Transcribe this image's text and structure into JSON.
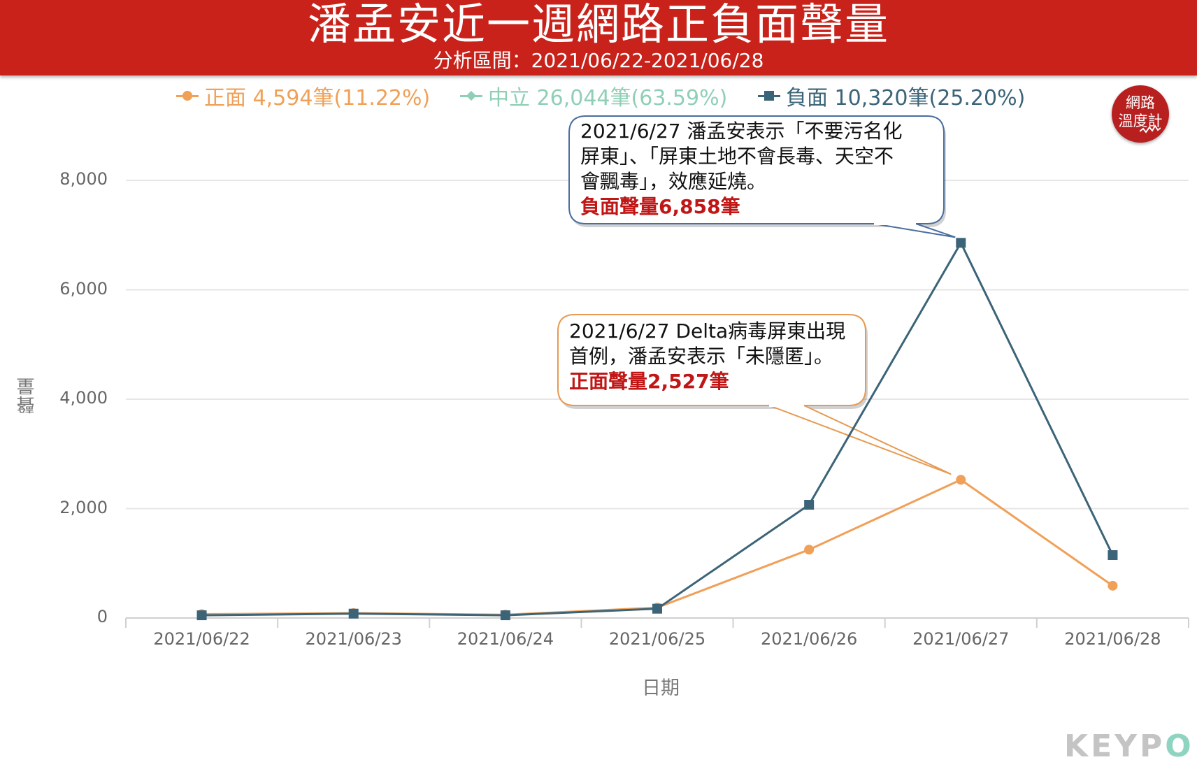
{
  "header": {
    "title": "潘孟安近一週網路正負面聲量",
    "subtitle": "分析區間：2021/06/22-2021/06/28"
  },
  "legend": [
    {
      "label": "正面 4,594筆(11.22%)",
      "color": "#f0a057",
      "marker": "circle"
    },
    {
      "label": "中立 26,044筆(63.59%)",
      "color": "#8fcfb6",
      "marker": "diamond"
    },
    {
      "label": "負面 10,320筆(25.20%)",
      "color": "#3c6478",
      "marker": "square"
    }
  ],
  "logo": {
    "line1": "網路",
    "line2": "溫度計"
  },
  "watermark": {
    "text_main": "KEYP",
    "text_o": "O"
  },
  "callouts": {
    "negative": {
      "line1": "2021/6/27 潘孟安表示「不要污名化",
      "line2": "屏東」、「屏東土地不會長毒、天空不",
      "line3": "會飄毒」，效應延燒。",
      "highlight": "負面聲量6,858筆",
      "border_color": "#4a6e9e"
    },
    "positive": {
      "line1": "2021/6/27 Delta病毒屏東出現",
      "line2": "首例，潘孟安表示「未隱匿」。",
      "highlight": "正面聲量2,527筆",
      "border_color": "#e69a52"
    }
  },
  "chart_data": {
    "type": "line",
    "title": "潘孟安近一週網路正負面聲量",
    "xlabel": "日期",
    "ylabel": "聲量",
    "categories": [
      "2021/06/22",
      "2021/06/23",
      "2021/06/24",
      "2021/06/25",
      "2021/06/26",
      "2021/06/27",
      "2021/06/28"
    ],
    "ylim": [
      0,
      8000
    ],
    "yticks": [
      {
        "value": 0,
        "label": "0"
      },
      {
        "value": 2000,
        "label": "2,000"
      },
      {
        "value": 4000,
        "label": "4,000"
      },
      {
        "value": 6000,
        "label": "6,000"
      },
      {
        "value": 8000,
        "label": "8,000"
      }
    ],
    "grid": true,
    "legend_position": "top",
    "series": [
      {
        "name": "正面",
        "color": "#f0a057",
        "marker": "circle",
        "values": [
          70,
          90,
          60,
          190,
          1250,
          2527,
          590
        ]
      },
      {
        "name": "負面",
        "color": "#3c6478",
        "marker": "square",
        "values": [
          50,
          80,
          50,
          170,
          2070,
          6858,
          1150
        ]
      }
    ]
  }
}
